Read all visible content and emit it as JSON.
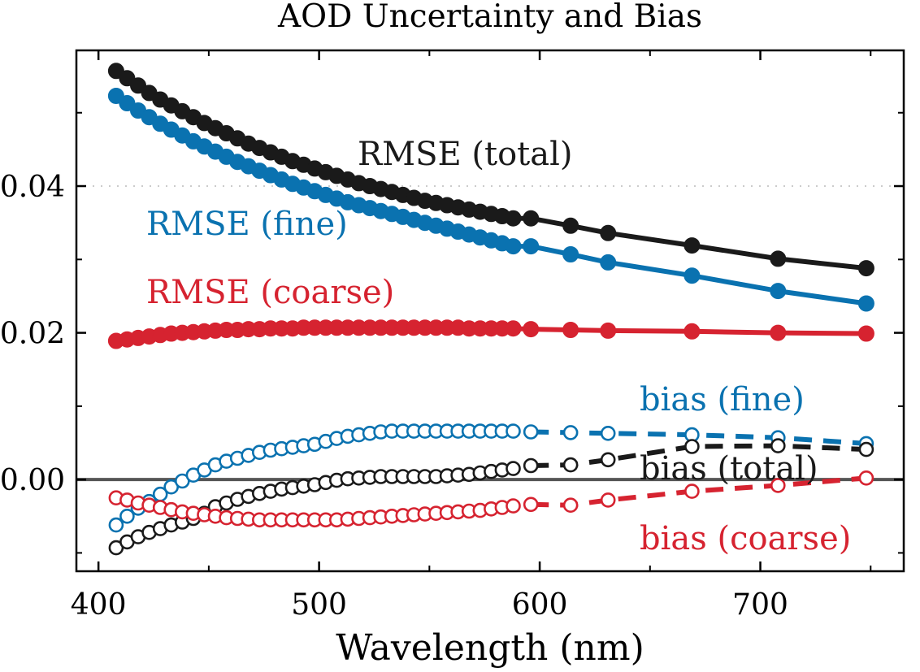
{
  "chart_data": {
    "type": "line",
    "title": "AOD Uncertainty and Bias",
    "xlabel": "Wavelength (nm)",
    "ylabel": "",
    "xlim": [
      390,
      765
    ],
    "ylim": [
      -0.0125,
      0.0585
    ],
    "xticks": [
      400,
      500,
      600,
      700
    ],
    "xtick_labels": [
      "400",
      "500",
      "600",
      "700"
    ],
    "yticks": [
      0.0,
      0.02,
      0.04
    ],
    "ytick_labels": [
      "0.00",
      "0.02",
      "0.04"
    ],
    "x": [
      408,
      413,
      418,
      423,
      428,
      433,
      438,
      443,
      448,
      453,
      458,
      463,
      468,
      473,
      478,
      483,
      488,
      493,
      498,
      503,
      508,
      513,
      518,
      523,
      528,
      533,
      538,
      543,
      548,
      553,
      558,
      563,
      568,
      573,
      578,
      583,
      588,
      596,
      614,
      631,
      669,
      708,
      748
    ],
    "zero_line": 0.0,
    "gridline_y": 0.04,
    "series": [
      {
        "name": "RMSE (total)",
        "label": "RMSE (total)",
        "color": "#1a1a1a",
        "style": "solid",
        "marker": "filled",
        "values": [
          0.0557,
          0.0547,
          0.0537,
          0.0527,
          0.0518,
          0.051,
          0.0502,
          0.0494,
          0.0486,
          0.0479,
          0.0472,
          0.0465,
          0.0458,
          0.0452,
          0.0446,
          0.044,
          0.0434,
          0.0429,
          0.0424,
          0.0419,
          0.0414,
          0.0409,
          0.0404,
          0.04,
          0.0396,
          0.0392,
          0.0388,
          0.0384,
          0.038,
          0.0377,
          0.0374,
          0.0371,
          0.0368,
          0.0365,
          0.0362,
          0.0359,
          0.0356,
          0.0356,
          0.0346,
          0.0336,
          0.0319,
          0.0301,
          0.0288
        ]
      },
      {
        "name": "RMSE (fine)",
        "label": "RMSE (fine)",
        "color": "#0a72b0",
        "style": "solid",
        "marker": "filled",
        "values": [
          0.0523,
          0.0513,
          0.0503,
          0.0494,
          0.0485,
          0.0477,
          0.0469,
          0.0461,
          0.0454,
          0.0447,
          0.044,
          0.0433,
          0.0427,
          0.0421,
          0.0415,
          0.0409,
          0.0403,
          0.0398,
          0.0393,
          0.0388,
          0.0383,
          0.0378,
          0.0374,
          0.037,
          0.0366,
          0.0362,
          0.0358,
          0.0354,
          0.035,
          0.0346,
          0.0342,
          0.0338,
          0.0334,
          0.033,
          0.0326,
          0.0322,
          0.0318,
          0.0318,
          0.0307,
          0.0296,
          0.0278,
          0.0257,
          0.024
        ]
      },
      {
        "name": "RMSE (coarse)",
        "label": "RMSE (coarse)",
        "color": "#d62330",
        "style": "solid",
        "marker": "filled",
        "values": [
          0.0189,
          0.0191,
          0.0193,
          0.0195,
          0.0197,
          0.0199,
          0.02,
          0.0201,
          0.0202,
          0.0203,
          0.0204,
          0.0204,
          0.0205,
          0.0205,
          0.0206,
          0.0206,
          0.0206,
          0.0207,
          0.0207,
          0.0207,
          0.0207,
          0.0207,
          0.0207,
          0.0207,
          0.0207,
          0.0207,
          0.0207,
          0.0207,
          0.0207,
          0.0207,
          0.0207,
          0.0207,
          0.0206,
          0.0206,
          0.0206,
          0.0206,
          0.0206,
          0.0205,
          0.0204,
          0.0203,
          0.0202,
          0.02,
          0.0199
        ]
      },
      {
        "name": "bias (fine)",
        "label": "bias (fine)",
        "color": "#0a72b0",
        "style": "dashed",
        "marker": "open",
        "values": [
          -0.0062,
          -0.005,
          -0.0039,
          -0.003,
          -0.002,
          -0.001,
          -0.0002,
          0.0006,
          0.0013,
          0.002,
          0.0025,
          0.0029,
          0.0033,
          0.0037,
          0.004,
          0.0042,
          0.0044,
          0.0046,
          0.0048,
          0.0052,
          0.0056,
          0.0059,
          0.0061,
          0.0063,
          0.0065,
          0.0066,
          0.0066,
          0.0066,
          0.0066,
          0.0066,
          0.0066,
          0.0066,
          0.0066,
          0.0066,
          0.0066,
          0.0066,
          0.0066,
          0.0065,
          0.0064,
          0.0063,
          0.0061,
          0.0057,
          0.0049
        ]
      },
      {
        "name": "bias (total)",
        "label": "bias (total)",
        "color": "#1a1a1a",
        "style": "dashed",
        "marker": "open",
        "values": [
          -0.0093,
          -0.0085,
          -0.0078,
          -0.0072,
          -0.0067,
          -0.0062,
          -0.0058,
          -0.0053,
          -0.0046,
          -0.0037,
          -0.0032,
          -0.0027,
          -0.0023,
          -0.0019,
          -0.0016,
          -0.0013,
          -0.0011,
          -0.0009,
          -0.0007,
          -0.0004,
          -0.0001,
          0.0001,
          0.0002,
          0.0003,
          0.0004,
          0.0004,
          0.0004,
          0.0004,
          0.0004,
          0.0004,
          0.0005,
          0.0006,
          0.0007,
          0.0009,
          0.0011,
          0.0013,
          0.0015,
          0.0019,
          0.002,
          0.0027,
          0.0045,
          0.0046,
          0.0041
        ]
      },
      {
        "name": "bias (coarse)",
        "label": "bias (coarse)",
        "color": "#d62330",
        "style": "dashed",
        "marker": "open",
        "values": [
          -0.0025,
          -0.0028,
          -0.0032,
          -0.0035,
          -0.0038,
          -0.0041,
          -0.0044,
          -0.0046,
          -0.0048,
          -0.005,
          -0.0052,
          -0.0053,
          -0.0054,
          -0.0055,
          -0.0055,
          -0.0055,
          -0.0055,
          -0.0055,
          -0.0055,
          -0.0055,
          -0.0055,
          -0.0054,
          -0.0053,
          -0.0052,
          -0.0051,
          -0.005,
          -0.0049,
          -0.0048,
          -0.0047,
          -0.0046,
          -0.0045,
          -0.0044,
          -0.0043,
          -0.0042,
          -0.004,
          -0.0038,
          -0.0036,
          -0.0034,
          -0.0035,
          -0.0028,
          -0.0016,
          -0.0008,
          0.0002
        ]
      }
    ]
  }
}
